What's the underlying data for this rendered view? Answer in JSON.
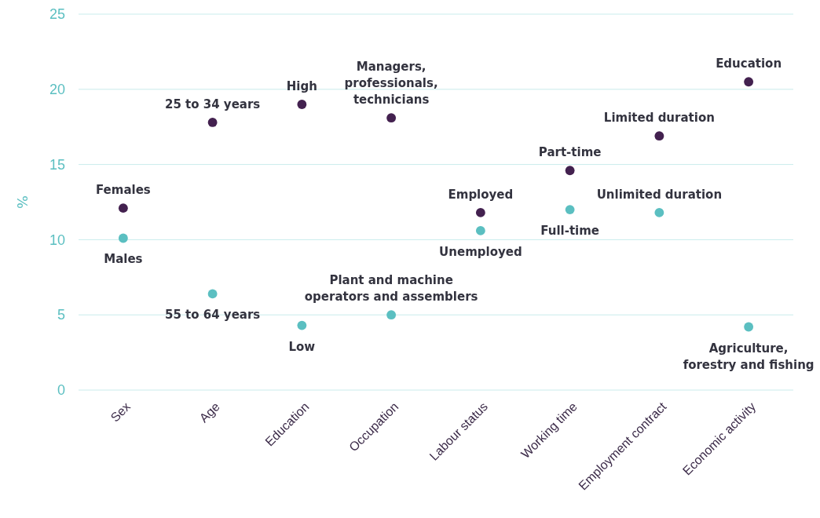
{
  "chart_data": {
    "type": "scatter",
    "ylabel": "%",
    "categories": [
      "Sex",
      "Age",
      "Education",
      "Occupation",
      "Labour status",
      "Working time",
      "Employment contract",
      "Economic activity"
    ],
    "series": [
      {
        "color": "#43214f",
        "values": [
          12.1,
          17.8,
          19.0,
          18.1,
          11.8,
          14.6,
          16.9,
          20.5
        ]
      },
      {
        "color": "#5bbfc1",
        "values": [
          10.1,
          6.4,
          4.3,
          5.0,
          10.6,
          12.0,
          11.8,
          4.2
        ]
      }
    ],
    "ylim": [
      0,
      25
    ],
    "yticks": [
      0,
      5,
      10,
      15,
      20,
      25
    ],
    "grid": "y",
    "marker": "circle",
    "annotations": [
      {
        "text": "Females",
        "x": "Sex",
        "y": 12.1
      },
      {
        "text": "Males",
        "x": "Sex",
        "y": 10.1
      },
      {
        "text": "25 to 34 years",
        "x": "Age",
        "y": 17.8
      },
      {
        "text": "55 to 64 years",
        "x": "Age",
        "y": 6.4
      },
      {
        "text": "High",
        "x": "Education",
        "y": 19.0
      },
      {
        "text": "Low",
        "x": "Education",
        "y": 4.3
      },
      {
        "text": "Managers,\nprofessionals,\ntechnicians",
        "x": "Occupation",
        "y": 18.1
      },
      {
        "text": "Plant and machine\noperators and assemblers",
        "x": "Occupation",
        "y": 5.0
      },
      {
        "text": "Employed",
        "x": "Labour status",
        "y": 11.8
      },
      {
        "text": "Unemployed",
        "x": "Labour status",
        "y": 10.6
      },
      {
        "text": "Part-time",
        "x": "Working time",
        "y": 14.6
      },
      {
        "text": "Full-time",
        "x": "Working time",
        "y": 12.0
      },
      {
        "text": "Limited duration",
        "x": "Employment contract",
        "y": 16.9
      },
      {
        "text": "Unlimited  duration",
        "x": "Employment contract",
        "y": 11.8
      },
      {
        "text": "Education",
        "x": "Economic activity",
        "y": 20.5
      },
      {
        "text": "Agriculture,\nforestry and fishing",
        "x": "Economic activity",
        "y": 4.2
      }
    ]
  }
}
